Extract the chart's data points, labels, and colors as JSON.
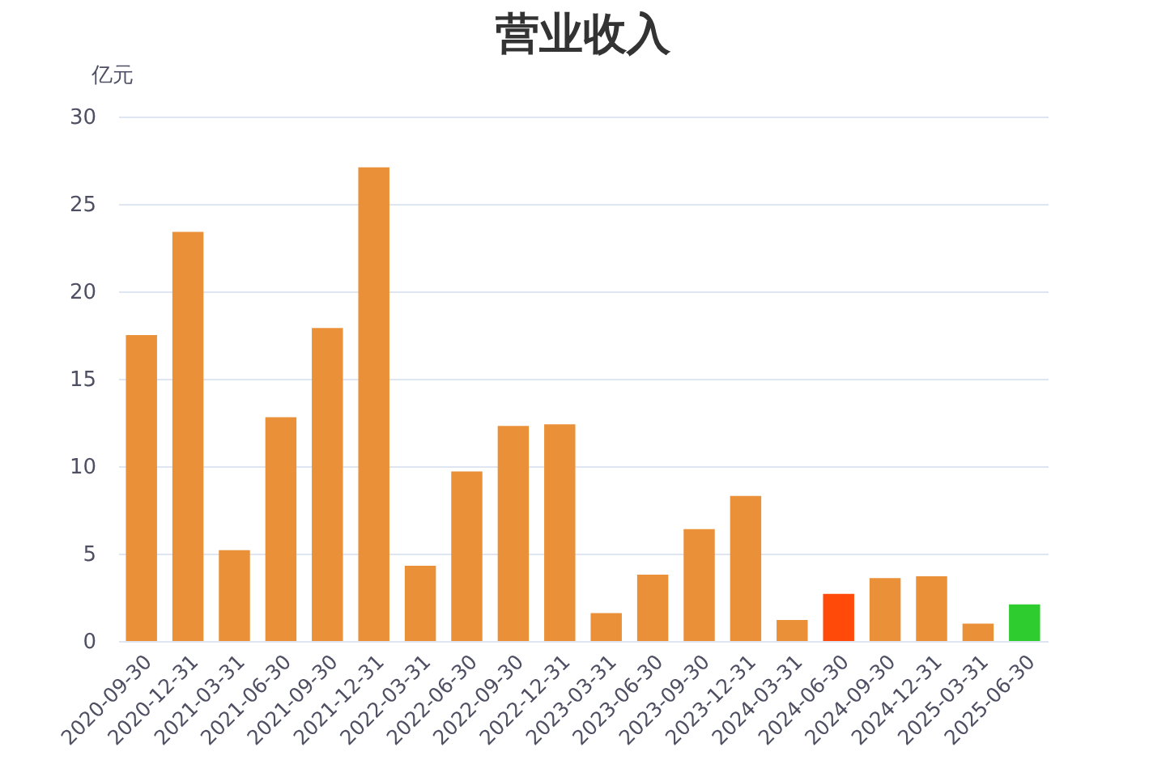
{
  "chart_data": {
    "type": "bar",
    "title": "营业收入",
    "ylabel": "亿元",
    "categories": [
      "2020-09-30",
      "2020-12-31",
      "2021-03-31",
      "2021-06-30",
      "2021-09-30",
      "2021-12-31",
      "2022-03-31",
      "2022-06-30",
      "2022-09-30",
      "2022-12-31",
      "2023-03-31",
      "2023-06-30",
      "2023-09-30",
      "2023-12-31",
      "2024-03-31",
      "2024-06-30",
      "2024-09-30",
      "2024-12-31",
      "2025-03-31",
      "2025-06-30"
    ],
    "values": [
      17.5,
      23.4,
      5.2,
      12.8,
      17.9,
      27.1,
      4.3,
      9.7,
      12.3,
      12.4,
      1.6,
      3.8,
      6.4,
      8.3,
      1.2,
      2.7,
      3.6,
      3.7,
      1.0,
      2.1
    ],
    "colors": [
      "#ea9038",
      "#ea9038",
      "#ea9038",
      "#ea9038",
      "#ea9038",
      "#ea9038",
      "#ea9038",
      "#ea9038",
      "#ea9038",
      "#ea9038",
      "#ea9038",
      "#ea9038",
      "#ea9038",
      "#ea9038",
      "#ea9038",
      "#ff4a0a",
      "#ea9038",
      "#ea9038",
      "#ea9038",
      "#2ecc2e"
    ],
    "ylim": [
      0,
      30
    ],
    "yticks": [
      0,
      5,
      10,
      15,
      20,
      25,
      30
    ],
    "grid": "y"
  }
}
